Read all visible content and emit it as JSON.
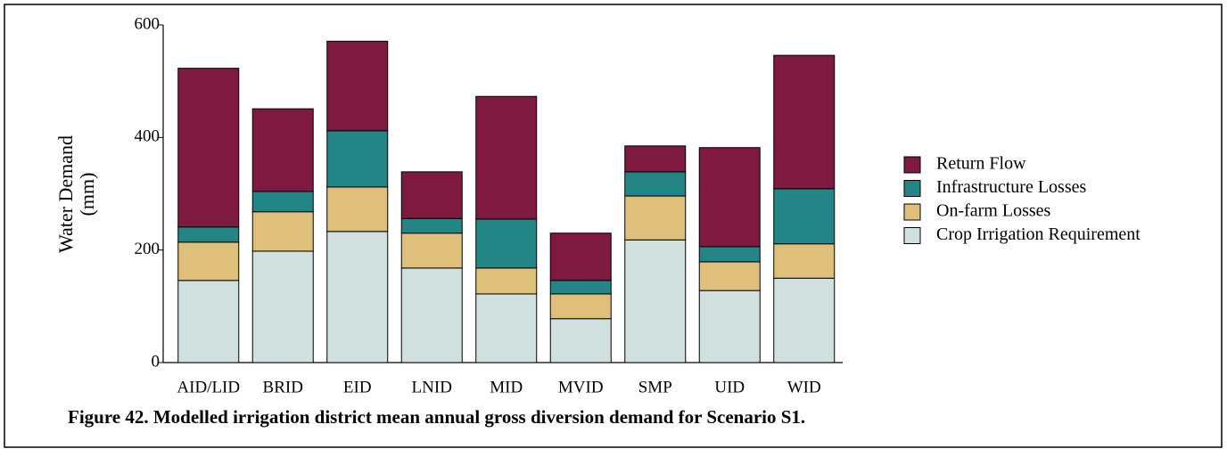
{
  "chart_data": {
    "type": "stacked-bar",
    "caption": "Figure 42. Modelled irrigation district mean annual gross diversion demand for Scenario S1.",
    "y_label": [
      "Water Demand",
      "(mm)"
    ],
    "categories": [
      "AID/LID",
      "BRID",
      "EID",
      "LNID",
      "MID",
      "MVID",
      "SMP",
      "UID",
      "WID"
    ],
    "series": [
      {
        "name": "Crop Irrigation Requirement",
        "color": "#cfe0de",
        "values": [
          146,
          198,
          233,
          168,
          122,
          78,
          218,
          128,
          150
        ]
      },
      {
        "name": "On-farm Losses",
        "color": "#dfc07a",
        "values": [
          68,
          70,
          79,
          62,
          46,
          44,
          78,
          51,
          61
        ]
      },
      {
        "name": "Infrastructure Losses",
        "color": "#238585",
        "values": [
          27,
          36,
          100,
          26,
          87,
          24,
          43,
          27,
          98
        ]
      },
      {
        "name": "Return Flow",
        "color": "#7e1a40",
        "values": [
          282,
          147,
          159,
          83,
          218,
          84,
          46,
          176,
          237
        ]
      }
    ],
    "ylim": [
      0,
      600
    ],
    "yticks": [
      0,
      200,
      400,
      600
    ]
  }
}
